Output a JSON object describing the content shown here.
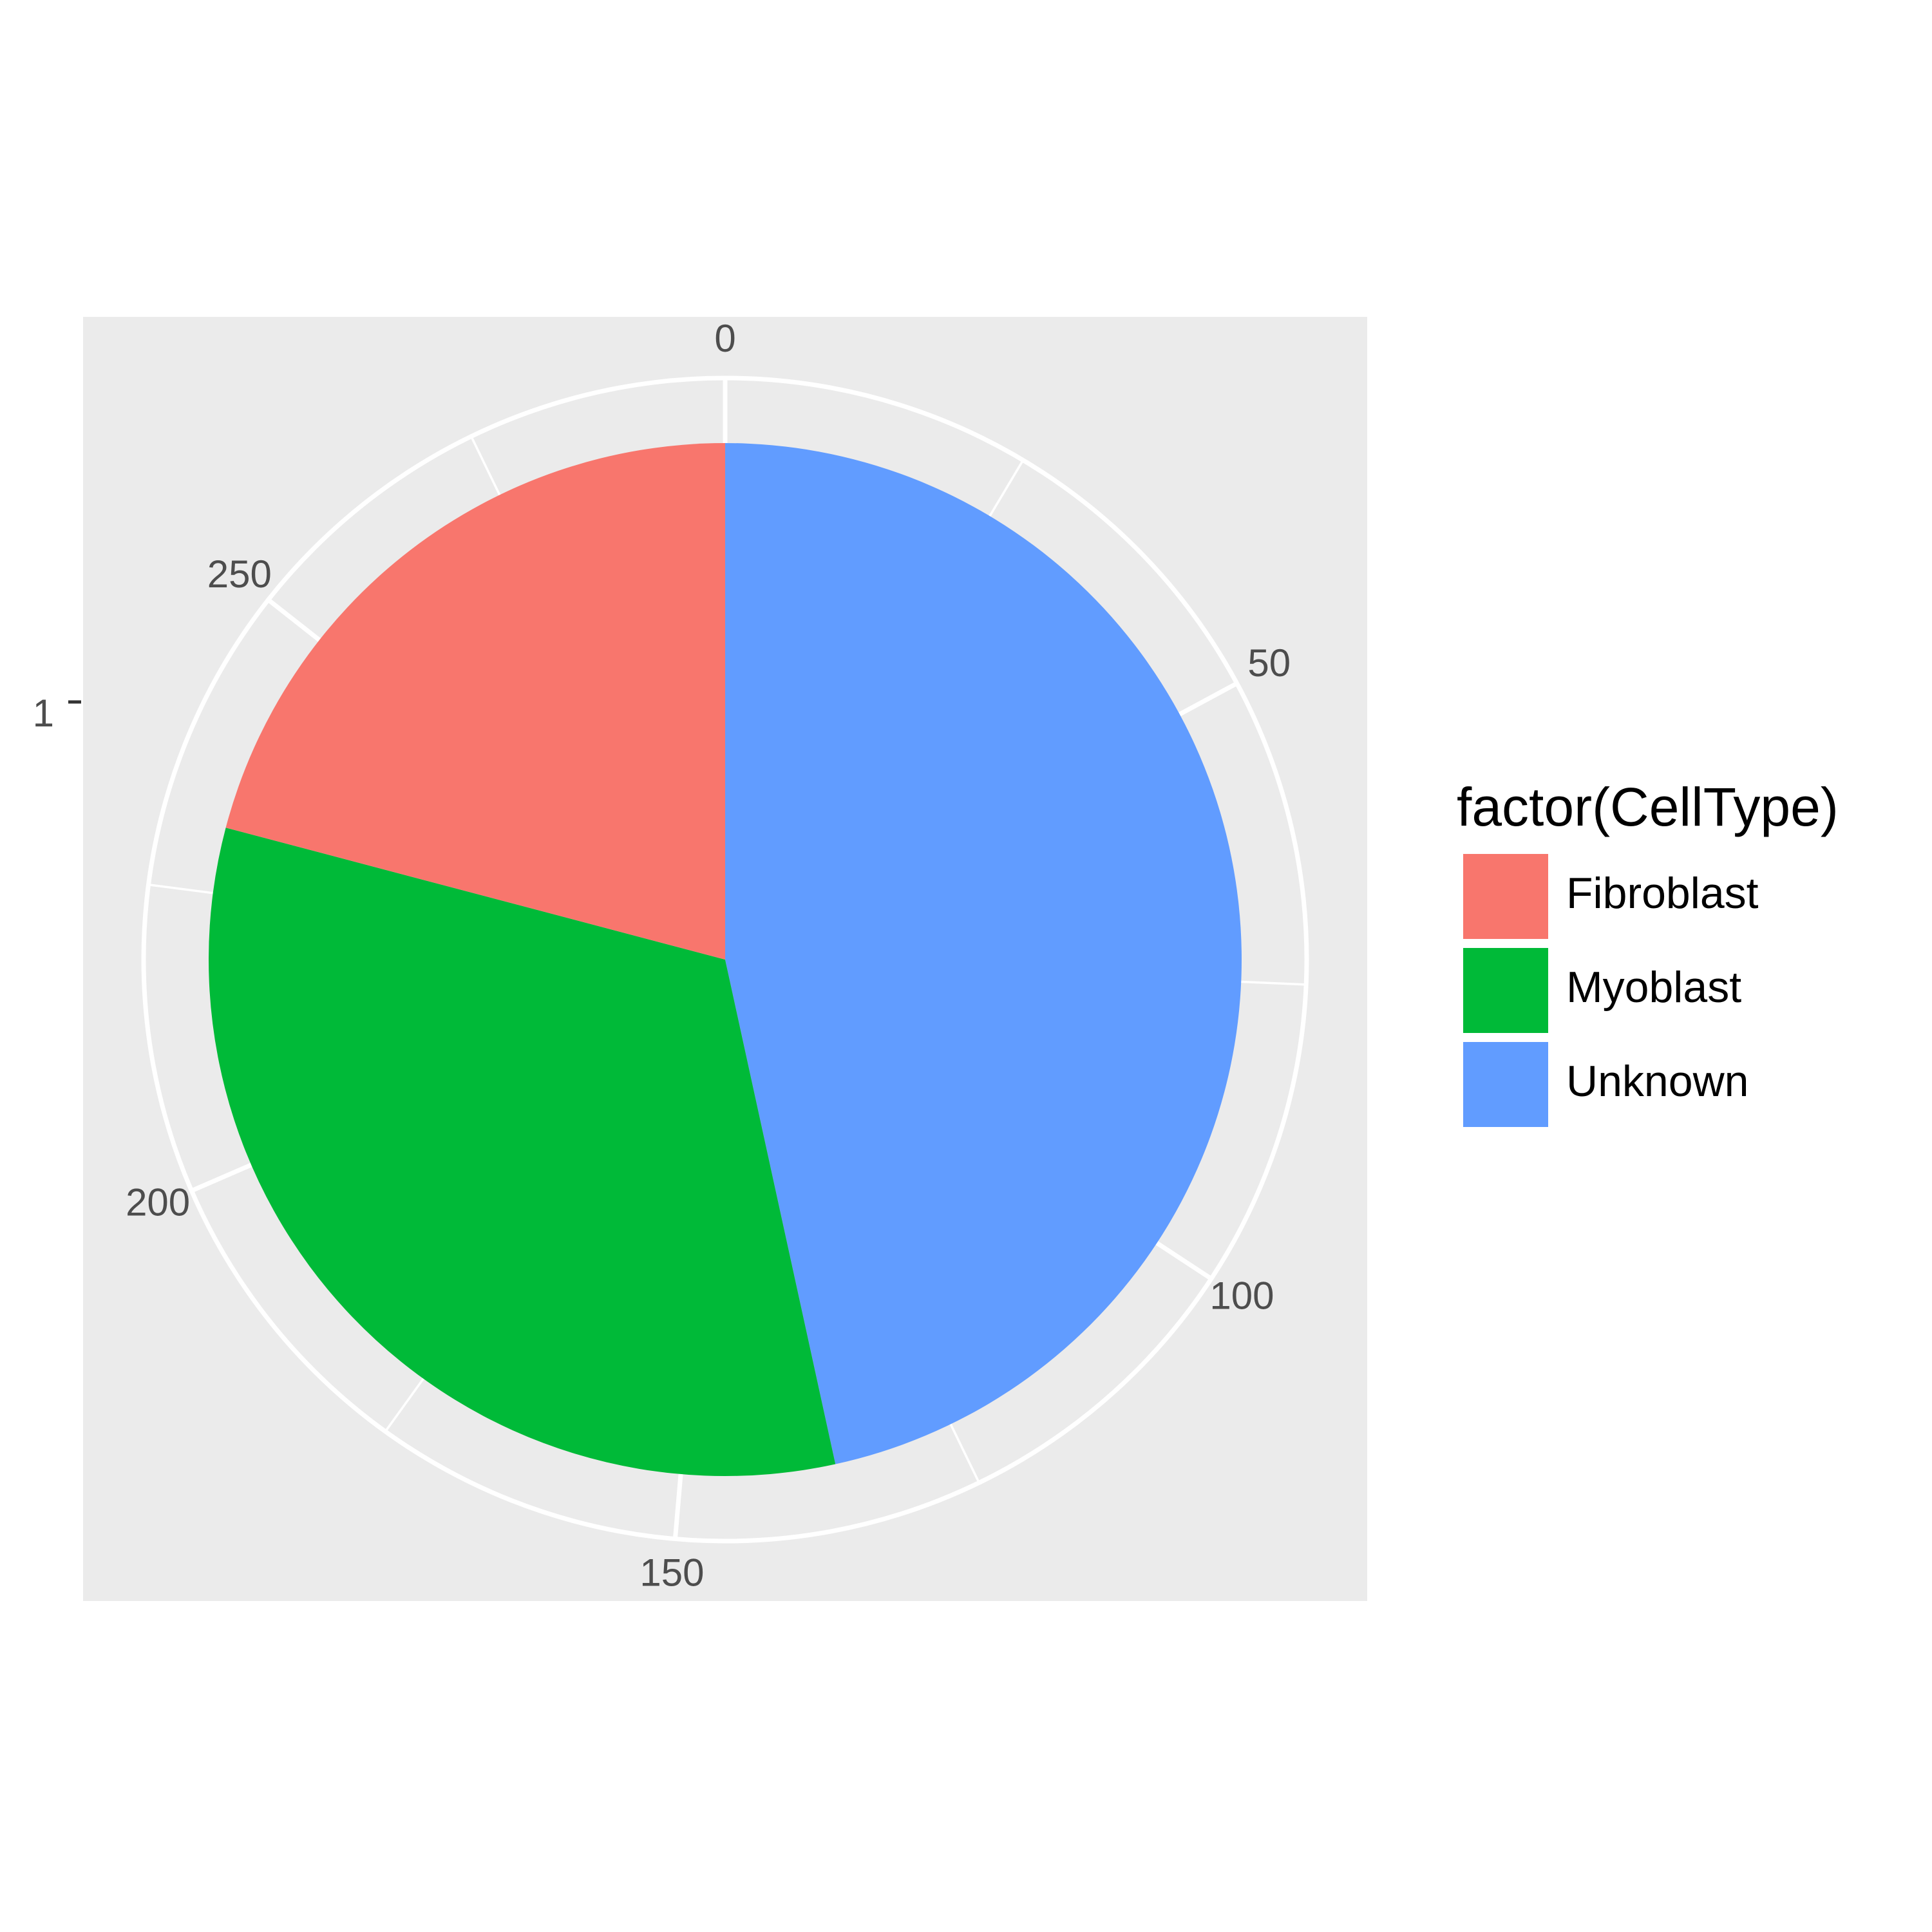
{
  "chart_data": {
    "type": "pie",
    "title": "",
    "xlabel": "",
    "ylabel": "",
    "theta_axis": {
      "range": [
        0,
        292
      ],
      "ticks": [
        0,
        50,
        100,
        150,
        200,
        250
      ],
      "tick_labels": [
        "0",
        "50",
        "100",
        "150",
        "200",
        "250"
      ]
    },
    "y_axis": {
      "ticks": [
        "1"
      ]
    },
    "grid": true,
    "legend": {
      "title": "factor(CellType)",
      "position": "right"
    },
    "slices": [
      {
        "label": "Unknown",
        "value": 136,
        "color": "#619CFF"
      },
      {
        "label": "Myoblast",
        "value": 95,
        "color": "#00BA38"
      },
      {
        "label": "Fibroblast",
        "value": 61,
        "color": "#F8766D"
      }
    ],
    "legend_order": [
      "Fibroblast",
      "Myoblast",
      "Unknown"
    ],
    "panel_background": "#EBEBEB",
    "grid_color": "#FFFFFF"
  }
}
